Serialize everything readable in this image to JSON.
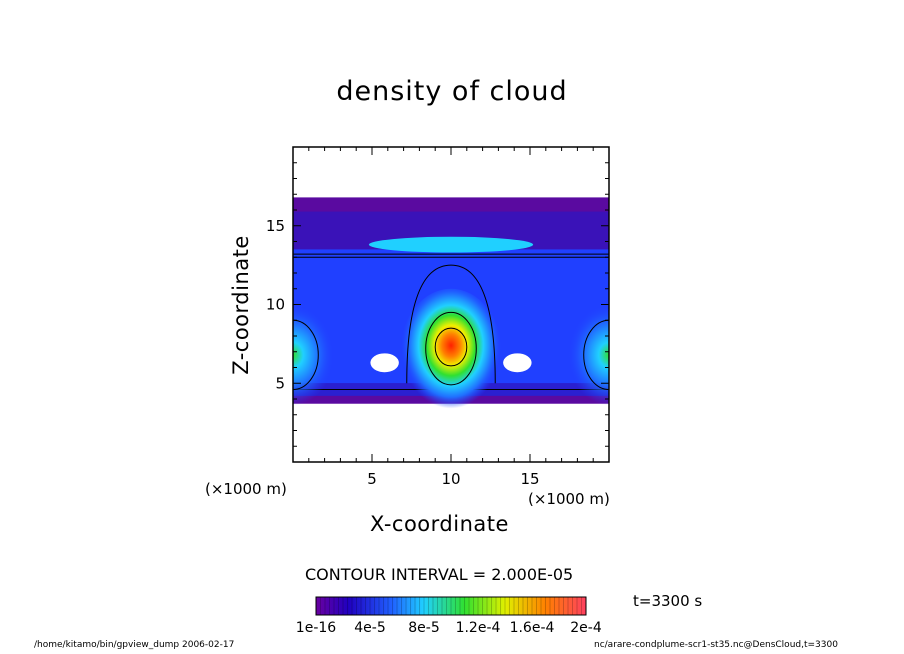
{
  "chart_data": {
    "type": "heatmap",
    "title": "density of cloud",
    "xlabel": "X-coordinate",
    "ylabel": "Z-coordinate",
    "xunit": "(×1000 m)",
    "yunit": "(×1000 m)",
    "xlim": [
      0,
      20
    ],
    "ylim": [
      0,
      20
    ],
    "xticks": [
      5,
      10,
      15
    ],
    "yticks": [
      5,
      10,
      15
    ],
    "contour_interval": "CONTOUR INTERVAL = 2.000E-05",
    "time_label": "t=3300 s",
    "colorbar": {
      "labels": [
        "1e-16",
        "4e-5",
        "8e-5",
        "1.2e-4",
        "1.6e-4",
        "2e-4"
      ],
      "range": [
        0,
        0.0002
      ]
    },
    "features": [
      {
        "name": "central-plume",
        "x": 10,
        "z": 7.3,
        "max": 0.0002
      },
      {
        "name": "left-edge-plume",
        "x": 0,
        "z": 6.8,
        "max": 9e-05
      },
      {
        "name": "right-edge-plume",
        "x": 20,
        "z": 6.8,
        "max": 9e-05
      },
      {
        "name": "upper-band",
        "x": 10,
        "z": 13.7,
        "max": 5e-05
      }
    ]
  },
  "footer": {
    "left": "/home/kitamo/bin/gpview_dump   2006-02-17",
    "right": "nc/arare-condplume-scr1-st35.nc@DensCloud,t=3300"
  },
  "colors": {
    "low": "#5a0aa0",
    "mid": "#2040ff",
    "cyan": "#20d0ff",
    "green": "#30e030",
    "yellow": "#f0f000",
    "orange": "#ff8000",
    "red": "#ff2000"
  }
}
